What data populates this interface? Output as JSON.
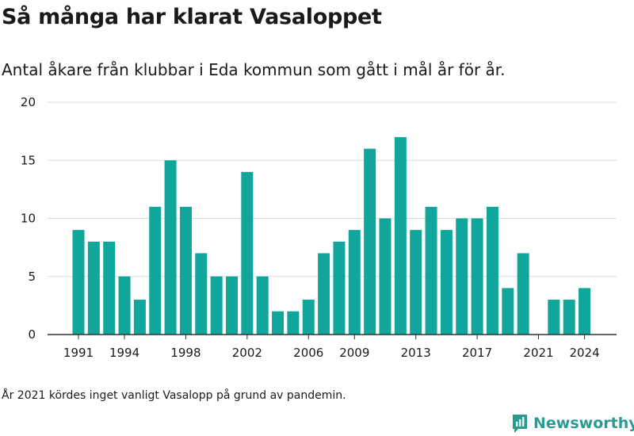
{
  "header": {
    "title": "Så många har klarat Vasaloppet",
    "subtitle": "Antal åkare från klubbar i Eda kommun som gått i mål år för år."
  },
  "footnote": "År 2021 kördes inget vanligt Vasalopp på grund av pandemin.",
  "brand": {
    "name": "Newsworthy",
    "icon": "newsworthy-logo-icon",
    "color": "#2a9b93"
  },
  "chart_data": {
    "type": "bar",
    "title": "Så många har klarat Vasaloppet",
    "subtitle": "Antal åkare från klubbar i Eda kommun som gått i mål år för år.",
    "xlabel": "",
    "ylabel": "",
    "ylim": [
      0,
      20
    ],
    "yticks": [
      0,
      5,
      10,
      15,
      20
    ],
    "xticks": [
      1991,
      1994,
      1998,
      2002,
      2006,
      2009,
      2013,
      2017,
      2021,
      2024
    ],
    "grid": true,
    "legend": "none",
    "bar_color": "#11a69c",
    "categories": [
      1991,
      1992,
      1993,
      1994,
      1995,
      1996,
      1997,
      1998,
      1999,
      2000,
      2001,
      2002,
      2003,
      2004,
      2005,
      2006,
      2007,
      2008,
      2009,
      2010,
      2011,
      2012,
      2013,
      2014,
      2015,
      2016,
      2017,
      2018,
      2019,
      2020,
      2021,
      2022,
      2023,
      2024
    ],
    "values": [
      9,
      8,
      8,
      5,
      3,
      11,
      15,
      11,
      7,
      5,
      5,
      14,
      5,
      2,
      2,
      3,
      7,
      8,
      9,
      16,
      10,
      17,
      9,
      11,
      9,
      10,
      10,
      11,
      4,
      7,
      0,
      3,
      3,
      4
    ]
  }
}
